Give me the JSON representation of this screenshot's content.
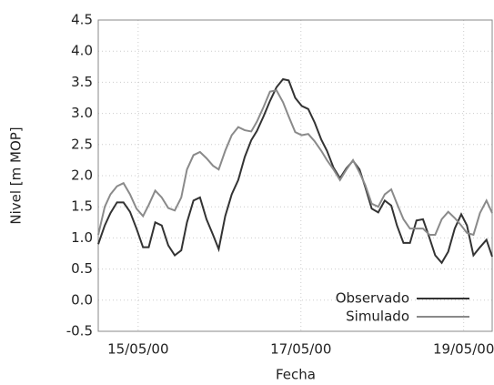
{
  "chart_data": {
    "type": "line",
    "x_label": "Fecha",
    "y_label": "Nivel [m MOP]",
    "x": [
      14.51,
      14.59,
      14.66,
      14.74,
      14.82,
      14.9,
      14.98,
      15.06,
      15.13,
      15.21,
      15.29,
      15.37,
      15.45,
      15.53,
      15.6,
      15.68,
      15.76,
      15.84,
      15.92,
      15.99,
      16.07,
      16.15,
      16.23,
      16.31,
      16.39,
      16.46,
      16.54,
      16.62,
      16.7,
      16.78,
      16.85,
      16.93,
      17.01,
      17.09,
      17.17,
      17.25,
      17.32,
      17.4,
      17.48,
      17.56,
      17.64,
      17.72,
      17.79,
      17.87,
      17.95,
      18.03,
      18.11,
      18.18,
      18.26,
      18.34,
      18.42,
      18.5,
      18.58,
      18.65,
      18.73,
      18.81,
      18.89,
      18.97,
      19.04,
      19.12,
      19.2,
      19.28,
      19.35
    ],
    "series": [
      {
        "name": "Observado",
        "color": "#333333",
        "values": [
          0.9,
          1.2,
          1.4,
          1.57,
          1.57,
          1.42,
          1.15,
          0.85,
          0.85,
          1.25,
          1.2,
          0.88,
          0.72,
          0.8,
          1.25,
          1.6,
          1.65,
          1.3,
          1.05,
          0.82,
          1.35,
          1.7,
          1.93,
          2.3,
          2.57,
          2.72,
          2.95,
          3.2,
          3.42,
          3.55,
          3.53,
          3.25,
          3.12,
          3.07,
          2.85,
          2.58,
          2.4,
          2.13,
          1.96,
          2.12,
          2.24,
          2.1,
          1.82,
          1.47,
          1.41,
          1.6,
          1.52,
          1.2,
          0.92,
          0.92,
          1.28,
          1.3,
          1.0,
          0.72,
          0.6,
          0.78,
          1.15,
          1.38,
          1.2,
          0.72,
          0.85,
          0.97,
          0.7
        ]
      },
      {
        "name": "Simulado",
        "color": "#8a8a8a",
        "values": [
          1.05,
          1.5,
          1.7,
          1.83,
          1.88,
          1.7,
          1.47,
          1.35,
          1.53,
          1.76,
          1.65,
          1.48,
          1.44,
          1.65,
          2.1,
          2.33,
          2.38,
          2.28,
          2.16,
          2.1,
          2.4,
          2.65,
          2.78,
          2.73,
          2.71,
          2.87,
          3.1,
          3.35,
          3.37,
          3.18,
          2.95,
          2.7,
          2.65,
          2.67,
          2.55,
          2.4,
          2.25,
          2.1,
          1.93,
          2.1,
          2.25,
          2.05,
          1.85,
          1.55,
          1.5,
          1.7,
          1.78,
          1.55,
          1.3,
          1.15,
          1.15,
          1.15,
          1.05,
          1.05,
          1.3,
          1.42,
          1.32,
          1.2,
          1.08,
          1.05,
          1.4,
          1.6,
          1.4
        ]
      }
    ],
    "xlim": [
      14.51,
      19.35
    ],
    "xticks": [
      {
        "value": 15,
        "label": "15/05/00"
      },
      {
        "value": 17,
        "label": "17/05/00"
      },
      {
        "value": 19,
        "label": "19/05/00"
      }
    ],
    "ylim": [
      -0.5,
      4.5
    ],
    "yticks": [
      -0.5,
      {
        "value": 0,
        "label": "0.0"
      },
      0.5,
      {
        "value": 1,
        "label": "1.0"
      },
      1.5,
      {
        "value": 2,
        "label": "2.0"
      },
      2.5,
      {
        "value": 3,
        "label": "3.0"
      },
      3.5,
      {
        "value": 4,
        "label": "4.0"
      },
      4.5
    ],
    "grid": true,
    "legend": "lower right"
  }
}
